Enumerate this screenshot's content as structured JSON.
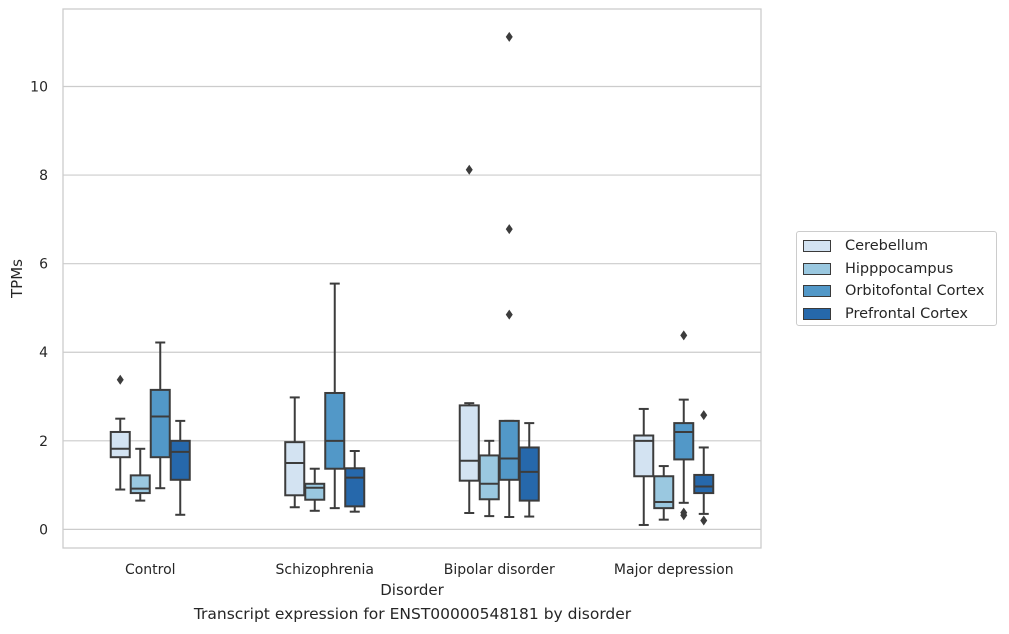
{
  "caption": "Transcript expression for ENST00000548181 by disorder",
  "chart_data": {
    "type": "box",
    "xlabel": "Disorder",
    "ylabel": "TPMs",
    "ylim": [
      -0.42,
      11.75
    ],
    "yticks": [
      "0",
      "2",
      "4",
      "6",
      "8",
      "10"
    ],
    "grid": true,
    "legend_position": "right",
    "categories": [
      "Control",
      "Schizophrenia",
      "Bipolar disorder",
      "Major depression"
    ],
    "series": [
      {
        "name": "Cerebellum",
        "color": "#d3e3f2",
        "boxes": [
          {
            "whislo": 0.9,
            "q1": 1.63,
            "med": 1.82,
            "q3": 2.2,
            "whishi": 2.5,
            "fliers": [
              3.38
            ]
          },
          {
            "whislo": 0.5,
            "q1": 0.77,
            "med": 1.5,
            "q3": 1.97,
            "whishi": 2.98,
            "fliers": []
          },
          {
            "whislo": 0.37,
            "q1": 1.1,
            "med": 1.55,
            "q3": 2.8,
            "whishi": 2.85,
            "fliers": [
              8.12
            ]
          },
          {
            "whislo": 0.1,
            "q1": 1.2,
            "med": 2.0,
            "q3": 2.12,
            "whishi": 2.72,
            "fliers": []
          }
        ]
      },
      {
        "name": "Hipppocampus",
        "color": "#9ac8e0",
        "boxes": [
          {
            "whislo": 0.65,
            "q1": 0.82,
            "med": 0.92,
            "q3": 1.22,
            "whishi": 1.82,
            "fliers": []
          },
          {
            "whislo": 0.42,
            "q1": 0.67,
            "med": 0.94,
            "q3": 1.03,
            "whishi": 1.37,
            "fliers": []
          },
          {
            "whislo": 0.3,
            "q1": 0.68,
            "med": 1.03,
            "q3": 1.67,
            "whishi": 2.0,
            "fliers": []
          },
          {
            "whislo": 0.22,
            "q1": 0.48,
            "med": 0.62,
            "q3": 1.2,
            "whishi": 1.43,
            "fliers": []
          }
        ]
      },
      {
        "name": "Orbitofontal Cortex",
        "color": "#5298c8",
        "boxes": [
          {
            "whislo": 0.93,
            "q1": 1.63,
            "med": 2.55,
            "q3": 3.15,
            "whishi": 4.22,
            "fliers": []
          },
          {
            "whislo": 0.48,
            "q1": 1.37,
            "med": 2.0,
            "q3": 3.08,
            "whishi": 5.55,
            "fliers": []
          },
          {
            "whislo": 0.28,
            "q1": 1.12,
            "med": 1.6,
            "q3": 2.45,
            "whishi": 2.45,
            "fliers": [
              11.12,
              6.78,
              4.85
            ]
          },
          {
            "whislo": 0.6,
            "q1": 1.58,
            "med": 2.2,
            "q3": 2.4,
            "whishi": 2.93,
            "fliers": [
              4.38,
              0.38,
              0.32
            ]
          }
        ]
      },
      {
        "name": "Prefrontal Cortex",
        "color": "#2668ab",
        "boxes": [
          {
            "whislo": 0.33,
            "q1": 1.12,
            "med": 1.75,
            "q3": 2.0,
            "whishi": 2.45,
            "fliers": []
          },
          {
            "whislo": 0.4,
            "q1": 0.52,
            "med": 1.17,
            "q3": 1.38,
            "whishi": 1.77,
            "fliers": []
          },
          {
            "whislo": 0.29,
            "q1": 0.65,
            "med": 1.3,
            "q3": 1.85,
            "whishi": 2.4,
            "fliers": []
          },
          {
            "whislo": 0.35,
            "q1": 0.82,
            "med": 0.97,
            "q3": 1.23,
            "whishi": 1.85,
            "fliers": [
              2.58,
              0.2
            ]
          }
        ]
      }
    ]
  }
}
